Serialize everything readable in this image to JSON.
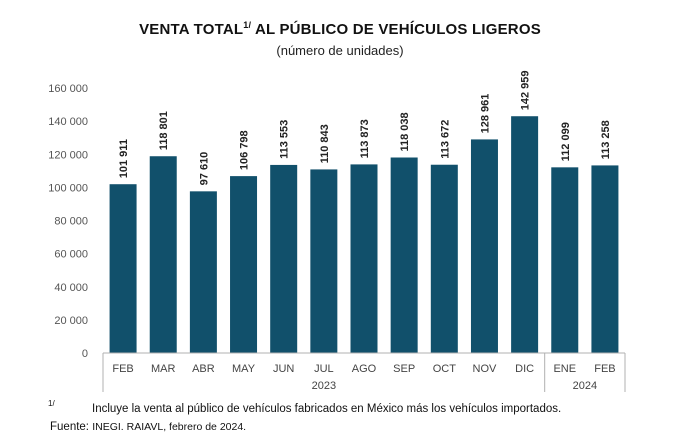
{
  "chart_data": {
    "type": "bar",
    "title": "VENTA TOTAL",
    "title_note_mark": "1/",
    "title_rest": "AL PÚBLICO DE VEHÍCULOS LIGEROS",
    "subtitle": "(número de unidades)",
    "categories": [
      "FEB",
      "MAR",
      "ABR",
      "MAY",
      "JUN",
      "JUL",
      "AGO",
      "SEP",
      "OCT",
      "NOV",
      "DIC",
      "ENE",
      "FEB"
    ],
    "values": [
      101911,
      118801,
      97610,
      106798,
      113553,
      110843,
      113873,
      118038,
      113672,
      128961,
      142959,
      112099,
      113258
    ],
    "value_labels": [
      "101 911",
      "118 801",
      "97 610",
      "106 798",
      "113 553",
      "110 843",
      "113 873",
      "118 038",
      "113 672",
      "128 961",
      "142 959",
      "112 099",
      "113 258"
    ],
    "year_groups": [
      {
        "label": "2023",
        "start": 0,
        "end": 10
      },
      {
        "label": "2024",
        "start": 11,
        "end": 12
      }
    ],
    "ylim": [
      0,
      160000
    ],
    "yticks": [
      0,
      20000,
      40000,
      60000,
      80000,
      100000,
      120000,
      140000,
      160000
    ],
    "ytick_labels": [
      "0",
      "20 000",
      "40 000",
      "60 000",
      "80 000",
      "100 000",
      "120 000",
      "140 000",
      "160 000"
    ],
    "bar_color": "#11506b",
    "grid": false
  },
  "footnote": {
    "mark": "1/",
    "text": "Incluye la venta al público de vehículos fabricados en México más los vehículos importados."
  },
  "source": {
    "label": "Fuente:",
    "text": "INEGI. RAIAVL, febrero de 2024."
  }
}
